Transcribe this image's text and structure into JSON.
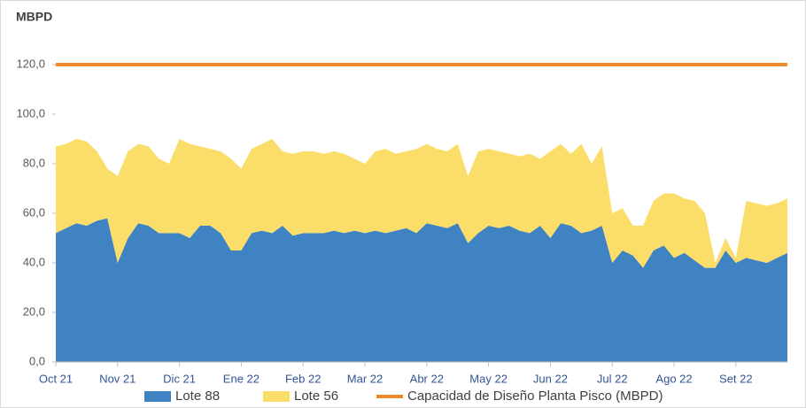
{
  "chart_data": {
    "type": "stacked_area",
    "y_label": "MBPD",
    "categories": [
      "Oct 21",
      null,
      null,
      null,
      null,
      null,
      "Nov 21",
      null,
      null,
      null,
      null,
      null,
      "Dic 21",
      null,
      null,
      null,
      null,
      null,
      "Ene 22",
      null,
      null,
      null,
      null,
      null,
      "Feb 22",
      null,
      null,
      null,
      null,
      null,
      "Mar 22",
      null,
      null,
      null,
      null,
      null,
      "Abr 22",
      null,
      null,
      null,
      null,
      null,
      "May 22",
      null,
      null,
      null,
      null,
      null,
      "Jun 22",
      null,
      null,
      null,
      null,
      null,
      "Jul 22",
      null,
      null,
      null,
      null,
      null,
      "Ago 22",
      null,
      null,
      null,
      null,
      null,
      "Set 22",
      null,
      null,
      null,
      null,
      null
    ],
    "series": [
      {
        "name": "Lote 88",
        "color": "#3f83c2",
        "values": [
          52,
          54,
          56,
          55,
          57,
          58,
          40,
          50,
          56,
          55,
          52,
          52,
          52,
          50,
          55,
          55,
          52,
          45,
          45,
          52,
          53,
          52,
          55,
          51,
          52,
          52,
          52,
          53,
          52,
          53,
          52,
          53,
          52,
          53,
          54,
          52,
          56,
          55,
          54,
          56,
          48,
          52,
          55,
          54,
          55,
          53,
          52,
          55,
          50,
          56,
          55,
          52,
          53,
          55,
          40,
          45,
          43,
          38,
          45,
          47,
          42,
          44,
          41,
          38,
          38,
          45,
          40,
          42,
          41,
          40,
          42,
          44
        ]
      },
      {
        "name": "Lote 56",
        "color": "#fbdd6a",
        "values": [
          35,
          34,
          34,
          34,
          28,
          20,
          35,
          35,
          32,
          32,
          30,
          28,
          38,
          38,
          32,
          31,
          33,
          37,
          33,
          34,
          35,
          38,
          30,
          33,
          33,
          33,
          32,
          32,
          32,
          29,
          28,
          32,
          34,
          31,
          31,
          34,
          32,
          31,
          31,
          32,
          27,
          33,
          31,
          31,
          29,
          30,
          32,
          27,
          35,
          32,
          29,
          36,
          27,
          32,
          20,
          17,
          12,
          17,
          20,
          21,
          26,
          22,
          24,
          22,
          2,
          5,
          2,
          23,
          23,
          23,
          22,
          22
        ]
      },
      {
        "name": "Capacidad de Diseño Planta Pisco (MBPD)",
        "color": "#ed8b2b",
        "kind": "line",
        "values": [
          120,
          120,
          120,
          120,
          120,
          120,
          120,
          120,
          120,
          120,
          120,
          120,
          120,
          120,
          120,
          120,
          120,
          120,
          120,
          120,
          120,
          120,
          120,
          120,
          120,
          120,
          120,
          120,
          120,
          120,
          120,
          120,
          120,
          120,
          120,
          120,
          120,
          120,
          120,
          120,
          120,
          120,
          120,
          120,
          120,
          120,
          120,
          120,
          120,
          120,
          120,
          120,
          120,
          120,
          120,
          120,
          120,
          120,
          120,
          120,
          120,
          120,
          120,
          120,
          120,
          120,
          120,
          120,
          120,
          120,
          120,
          120
        ]
      }
    ],
    "ylim": [
      0,
      130
    ],
    "yticks": [
      {
        "value": 0,
        "label": "0,0"
      },
      {
        "value": 20,
        "label": "20,0"
      },
      {
        "value": 40,
        "label": "40,0"
      },
      {
        "value": 60,
        "label": "60,0"
      },
      {
        "value": 80,
        "label": "80,0"
      },
      {
        "value": 100,
        "label": "100,0"
      },
      {
        "value": 120,
        "label": "120,0"
      }
    ]
  }
}
